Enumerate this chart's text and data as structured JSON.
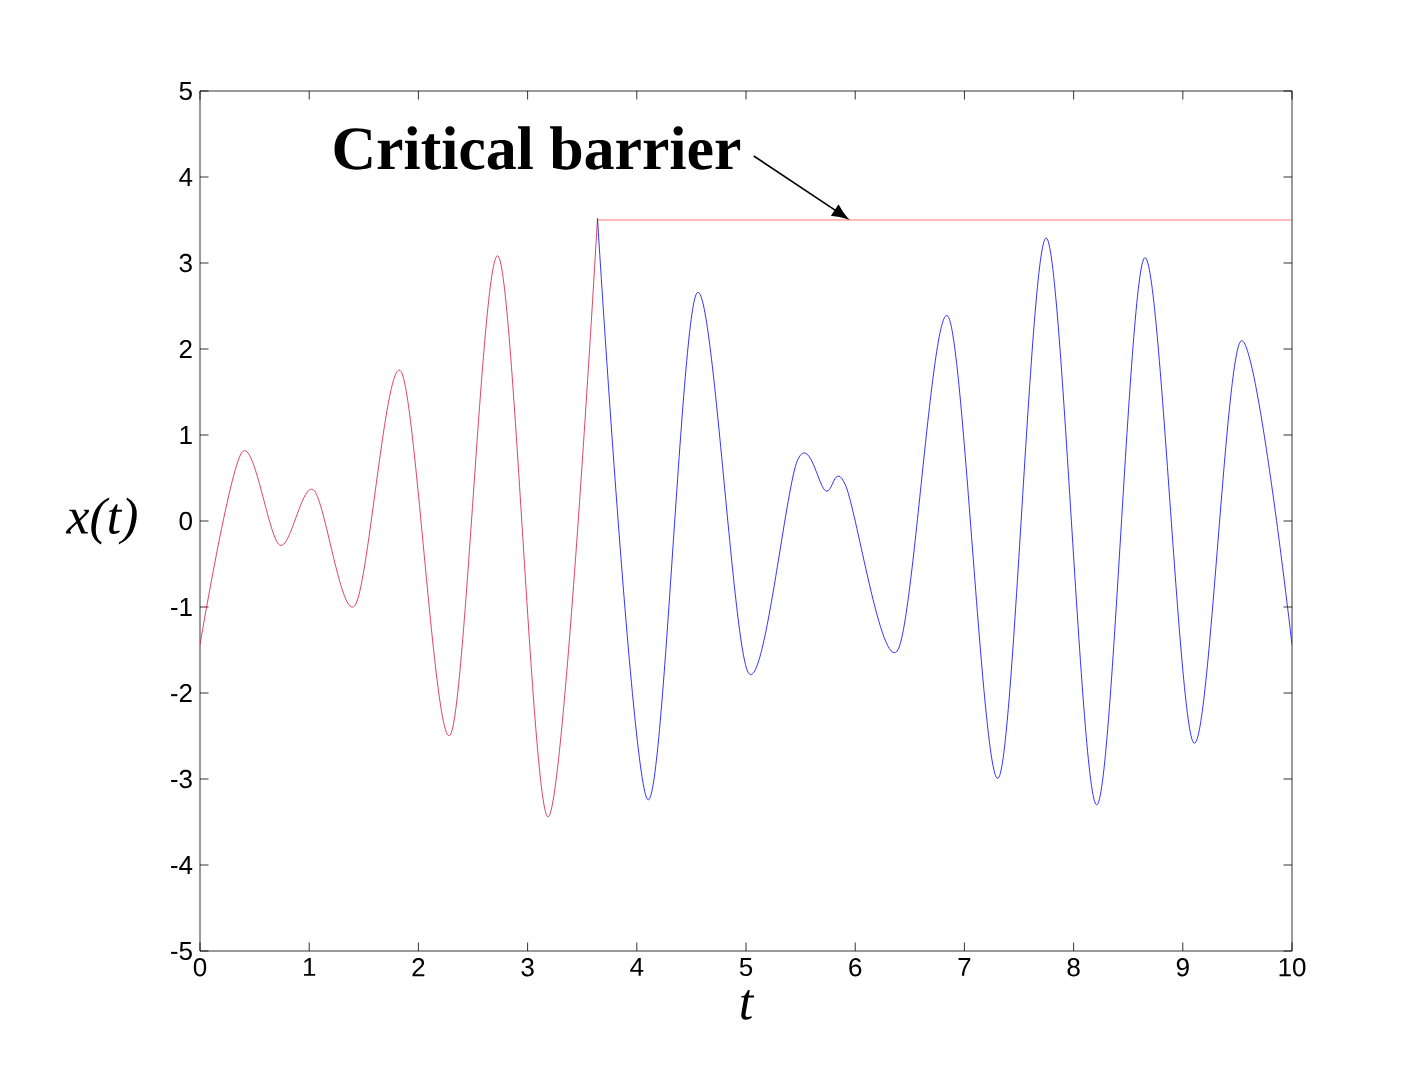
{
  "chart_data": {
    "type": "line",
    "xlabel": "t",
    "ylabel": "x(t)",
    "xlim": [
      0,
      10
    ],
    "ylim": [
      -5,
      5
    ],
    "xticks": [
      0,
      1,
      2,
      3,
      4,
      5,
      6,
      7,
      8,
      9,
      10
    ],
    "yticks": [
      -5,
      -4,
      -3,
      -2,
      -1,
      0,
      1,
      2,
      3,
      4,
      5
    ],
    "series": [
      {
        "color": "#d9143c",
        "x": [
          0,
          0.385,
          0.73,
          1.04,
          1.42,
          1.84,
          2.29,
          2.73,
          3.19,
          3.64
        ],
        "values": [
          -1.44,
          0.8,
          -0.28,
          0.36,
          -0.98,
          1.74,
          -2.49,
          3.08,
          -3.44,
          3.52
        ]
      },
      {
        "color": "#0000ff",
        "x": [
          3.64,
          4.1,
          4.55,
          5.02,
          5.47,
          5.73,
          5.91,
          6.39,
          6.85,
          7.31,
          7.75,
          8.21,
          8.65,
          9.1,
          9.53,
          10
        ],
        "values": [
          3.52,
          -3.24,
          2.65,
          -1.76,
          0.7,
          0.35,
          0.42,
          -1.5,
          2.38,
          -2.99,
          3.29,
          -3.3,
          3.06,
          -2.58,
          2.09,
          -1.44
        ]
      },
      {
        "color": "#ff5050",
        "x": [
          3.64,
          10
        ],
        "values": [
          3.5,
          3.5
        ]
      }
    ],
    "annotations": [
      {
        "text": "Critical barrier",
        "x": 5.95,
        "y": 3.5
      }
    ]
  }
}
